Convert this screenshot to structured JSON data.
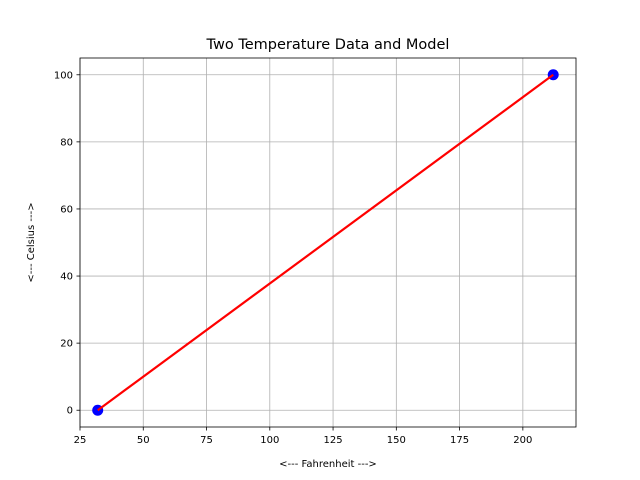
{
  "chart_data": {
    "type": "scatter",
    "title": "Two Temperature Data and Model",
    "xlabel": "<--- Fahrenheit --->",
    "ylabel": "<--- Celsius --->",
    "xlim": [
      25,
      221
    ],
    "ylim": [
      -5,
      105
    ],
    "xticks": [
      25,
      50,
      75,
      100,
      125,
      150,
      175,
      200
    ],
    "yticks": [
      0,
      20,
      40,
      60,
      80,
      100
    ],
    "grid": true,
    "series": [
      {
        "kind": "scatter",
        "color": "#0000ff",
        "points": [
          {
            "x": 32,
            "y": 0
          },
          {
            "x": 212,
            "y": 100
          }
        ]
      },
      {
        "kind": "line",
        "color": "#ff0000",
        "points": [
          {
            "x": 32,
            "y": 0
          },
          {
            "x": 212,
            "y": 100
          }
        ]
      }
    ]
  }
}
